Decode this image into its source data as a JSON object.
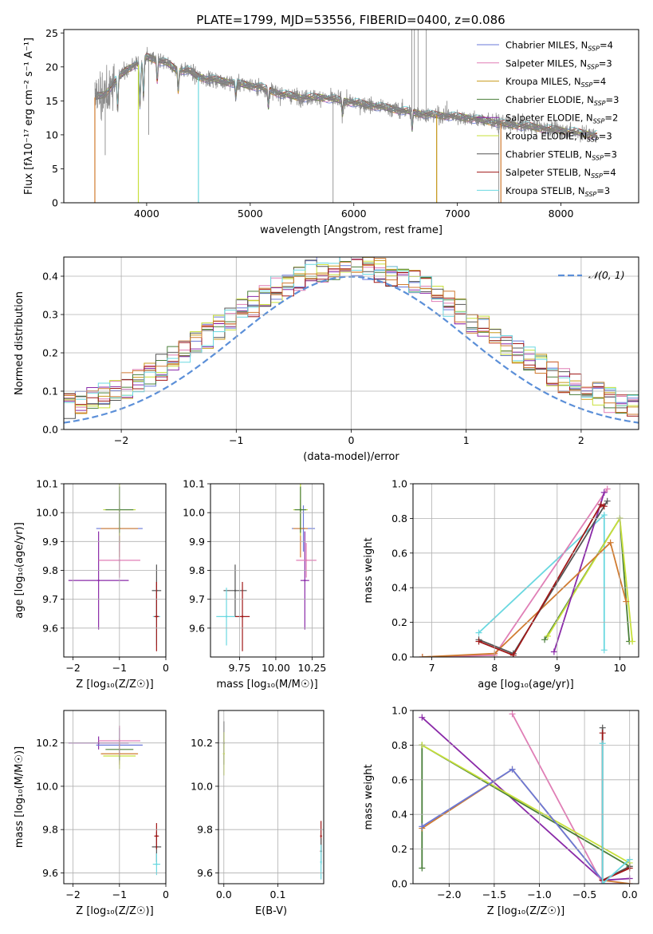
{
  "title": "PLATE=1799, MJD=53556, FIBERID=0400, z=0.086",
  "colors": {
    "chabrier_miles": "#6a78d8",
    "salpeter_miles": "#e07fb6",
    "kroupa_miles": "#c89a1a",
    "chabrier_elodie": "#4a7f3a",
    "salpeter_elodie": "#8a2aa8",
    "kroupa_elodie": "#c7e03a",
    "chabrier_stelib": "#555555",
    "salpeter_stelib": "#a01818",
    "kroupa_stelib": "#6ad8e0",
    "orange_fit": "#d07b30",
    "gauss": "#5b8fd8",
    "data": "#7f7f7f",
    "grid": "#b0b0b0"
  },
  "chart_data": [
    {
      "id": "spectrum",
      "type": "line",
      "xlabel": "wavelength [Angstrom, rest frame]",
      "ylabel": "Flux [fλ10⁻¹⁷ erg cm⁻² s⁻¹ A⁻¹]",
      "xlim": [
        3200,
        8750
      ],
      "ylim": [
        0,
        25.5
      ],
      "xticks": [
        4000,
        5000,
        6000,
        7000,
        8000
      ],
      "yticks": [
        0,
        5,
        10,
        15,
        20,
        25
      ],
      "grid": false,
      "legend_position": "top-right",
      "legend": [
        {
          "text": "Chabrier MILES, N",
          "sub": "SSP",
          "tail": "=4",
          "color_key": "chabrier_miles"
        },
        {
          "text": "Salpeter MILES, N",
          "sub": "SSP",
          "tail": "=3",
          "color_key": "salpeter_miles"
        },
        {
          "text": "Kroupa MILES, N",
          "sub": "SSP",
          "tail": "=4",
          "color_key": "kroupa_miles"
        },
        {
          "text": "Chabrier ELODIE, N",
          "sub": "SSP",
          "tail": "=3",
          "color_key": "chabrier_elodie"
        },
        {
          "text": "Salpeter ELODIE, N",
          "sub": "SSP",
          "tail": "=2",
          "color_key": "salpeter_elodie"
        },
        {
          "text": "Kroupa ELODIE, N",
          "sub": "SSP",
          "tail": "=3",
          "color_key": "kroupa_elodie"
        },
        {
          "text": "Chabrier STELIB, N",
          "sub": "SSP",
          "tail": "=3",
          "color_key": "chabrier_stelib"
        },
        {
          "text": "Salpeter STELIB, N",
          "sub": "SSP",
          "tail": "=4",
          "color_key": "salpeter_stelib"
        },
        {
          "text": "Kroupa STELIB, N",
          "sub": "SSP",
          "tail": "=3",
          "color_key": "kroupa_stelib"
        }
      ],
      "continuum": [
        [
          3500,
          15.5
        ],
        [
          3600,
          16.0
        ],
        [
          3700,
          18.0
        ],
        [
          3800,
          19.5
        ],
        [
          3900,
          20.5
        ],
        [
          3950,
          20.0
        ],
        [
          4000,
          21.5
        ],
        [
          4100,
          21.0
        ],
        [
          4200,
          20.5
        ],
        [
          4300,
          19.5
        ],
        [
          4400,
          19.5
        ],
        [
          4500,
          18.5
        ],
        [
          4700,
          18.0
        ],
        [
          4900,
          17.5
        ],
        [
          5100,
          17.0
        ],
        [
          5300,
          16.0
        ],
        [
          5500,
          15.5
        ],
        [
          5700,
          15.5
        ],
        [
          5900,
          15.0
        ],
        [
          6100,
          14.5
        ],
        [
          6300,
          14.0
        ],
        [
          6500,
          13.5
        ],
        [
          6700,
          13.0
        ],
        [
          6900,
          12.8
        ],
        [
          7100,
          12.5
        ],
        [
          7300,
          12.0
        ],
        [
          7500,
          11.5
        ],
        [
          7700,
          11.2
        ],
        [
          7900,
          10.8
        ],
        [
          8100,
          10.5
        ],
        [
          8300,
          10.0
        ]
      ],
      "absorption": [
        [
          3720,
          4.5
        ],
        [
          3935,
          6
        ],
        [
          3970,
          5
        ],
        [
          4102,
          3
        ],
        [
          4305,
          3
        ],
        [
          4861,
          2
        ],
        [
          5175,
          2.5
        ],
        [
          5890,
          2
        ],
        [
          6563,
          2.5
        ],
        [
          8500,
          1.5
        ],
        [
          8542,
          2
        ],
        [
          8662,
          1.5
        ]
      ],
      "data_spikes": [
        [
          3600,
          7
        ],
        [
          4020,
          10
        ],
        [
          5800,
          0
        ],
        [
          6560,
          25.5
        ],
        [
          6585,
          25.5
        ],
        [
          6620,
          25.5
        ],
        [
          6700,
          25.5
        ],
        [
          6800,
          0
        ],
        [
          6900,
          15
        ],
        [
          7400,
          0
        ]
      ],
      "model_dropouts": [
        [
          3500,
          0,
          "orange_fit"
        ],
        [
          3920,
          0,
          "kroupa_elodie"
        ],
        [
          4500,
          0,
          "kroupa_stelib"
        ],
        [
          6800,
          0,
          "kroupa_miles"
        ],
        [
          7420,
          0,
          "orange_fit"
        ]
      ]
    },
    {
      "id": "residuals",
      "type": "area",
      "xlabel": "(data-model)/error",
      "ylabel": "Normed distribution",
      "xlim": [
        -2.5,
        2.5
      ],
      "ylim": [
        0,
        0.45
      ],
      "xticks": [
        -2,
        -1,
        0,
        1,
        2
      ],
      "yticks": [
        0.0,
        0.1,
        0.2,
        0.3,
        0.4
      ],
      "grid": true,
      "legend_position": "top-right",
      "gauss_label": "𝒩(0, 1)",
      "bin_width": 0.1
    },
    {
      "id": "age_vs_Z",
      "type": "scatter",
      "xlabel": "Z [log₁₀(Z/Z☉)]",
      "ylabel": "age  [log₁₀(age/yr)]",
      "xlim": [
        -2.2,
        0.0
      ],
      "ylim": [
        9.5,
        10.1
      ],
      "xticks": [
        -2,
        -1,
        0
      ],
      "yticks": [
        9.6,
        9.7,
        9.8,
        9.9,
        10.0,
        10.1
      ],
      "grid": true,
      "points": [
        {
          "x": -1.45,
          "y": 9.765,
          "xerr": 0.65,
          "yerr": 0.17,
          "color_key": "salpeter_elodie"
        },
        {
          "x": -1.0,
          "y": 9.945,
          "xerr": 0.5,
          "yerr": 0.08,
          "color_key": "chabrier_miles"
        },
        {
          "x": -1.0,
          "y": 9.945,
          "xerr": 0.4,
          "yerr": 0.1,
          "color_key": "orange_fit"
        },
        {
          "x": -1.0,
          "y": 10.01,
          "xerr": 0.35,
          "yerr": 0.09,
          "color_key": "kroupa_elodie"
        },
        {
          "x": -1.0,
          "y": 10.01,
          "xerr": 0.3,
          "yerr": 0.08,
          "color_key": "chabrier_elodie"
        },
        {
          "x": -1.0,
          "y": 9.835,
          "xerr": 0.45,
          "yerr": 0.06,
          "color_key": "salpeter_miles"
        },
        {
          "x": -0.2,
          "y": 9.73,
          "xerr": 0.1,
          "yerr": 0.09,
          "color_key": "chabrier_stelib"
        },
        {
          "x": -0.2,
          "y": 9.64,
          "xerr": 0.08,
          "yerr": 0.1,
          "color_key": "kroupa_stelib"
        },
        {
          "x": -0.2,
          "y": 9.64,
          "xerr": 0.05,
          "yerr": 0.12,
          "color_key": "salpeter_stelib"
        }
      ]
    },
    {
      "id": "age_vs_mass",
      "type": "scatter",
      "xlabel": "mass [log₁₀(M/M☉)]",
      "ylabel": "",
      "xlim": [
        9.55,
        10.33
      ],
      "ylim": [
        9.5,
        10.1
      ],
      "xticks": [
        9.75,
        10.0,
        10.25
      ],
      "xticklabels": [
        "9.75",
        "10.00",
        "10.25"
      ],
      "yticks": [
        9.6,
        9.7,
        9.8,
        9.9,
        10.0,
        10.1
      ],
      "grid": true,
      "points": [
        {
          "x": 10.2,
          "y": 9.765,
          "xerr": 0.03,
          "yerr": 0.17,
          "color_key": "salpeter_elodie"
        },
        {
          "x": 10.19,
          "y": 9.945,
          "xerr": 0.08,
          "yerr": 0.08,
          "color_key": "chabrier_miles"
        },
        {
          "x": 10.17,
          "y": 9.945,
          "xerr": 0.05,
          "yerr": 0.1,
          "color_key": "orange_fit"
        },
        {
          "x": 10.17,
          "y": 10.01,
          "xerr": 0.05,
          "yerr": 0.09,
          "color_key": "kroupa_elodie"
        },
        {
          "x": 10.17,
          "y": 10.01,
          "xerr": 0.04,
          "yerr": 0.08,
          "color_key": "chabrier_elodie"
        },
        {
          "x": 10.21,
          "y": 9.835,
          "xerr": 0.07,
          "yerr": 0.06,
          "color_key": "salpeter_miles"
        },
        {
          "x": 9.72,
          "y": 9.73,
          "xerr": 0.08,
          "yerr": 0.09,
          "color_key": "chabrier_stelib"
        },
        {
          "x": 9.66,
          "y": 9.64,
          "xerr": 0.07,
          "yerr": 0.1,
          "color_key": "kroupa_stelib"
        },
        {
          "x": 9.77,
          "y": 9.64,
          "xerr": 0.05,
          "yerr": 0.12,
          "color_key": "salpeter_stelib"
        }
      ]
    },
    {
      "id": "weight_vs_age",
      "type": "line",
      "xlabel": "age  [log₁₀(age/yr)]",
      "ylabel": "mass weight",
      "xlim": [
        6.7,
        10.3
      ],
      "ylim": [
        0,
        1.0
      ],
      "xticks": [
        7,
        8,
        9,
        10
      ],
      "yticks": [
        0.0,
        0.2,
        0.4,
        0.6,
        0.8,
        1.0
      ],
      "grid": true,
      "series": [
        {
          "color_key": "kroupa_stelib",
          "points": [
            [
              7.75,
              0.14
            ],
            [
              9.75,
              0.82
            ],
            [
              9.75,
              0.04
            ]
          ]
        },
        {
          "color_key": "salpeter_miles",
          "points": [
            [
              6.85,
              0.0
            ],
            [
              8.0,
              0.01
            ],
            [
              9.8,
              0.97
            ]
          ]
        },
        {
          "color_key": "chabrier_elodie",
          "points": [
            [
              8.8,
              0.1
            ],
            [
              10.0,
              0.8
            ],
            [
              10.15,
              0.09
            ]
          ]
        },
        {
          "color_key": "kroupa_elodie",
          "points": [
            [
              8.85,
              0.12
            ],
            [
              10.0,
              0.8
            ],
            [
              10.2,
              0.09
            ]
          ]
        },
        {
          "color_key": "salpeter_elodie",
          "points": [
            [
              8.95,
              0.03
            ],
            [
              9.75,
              0.95
            ]
          ]
        },
        {
          "color_key": "orange_fit",
          "points": [
            [
              6.85,
              0.0
            ],
            [
              8.0,
              0.02
            ],
            [
              9.85,
              0.66
            ],
            [
              10.1,
              0.32
            ]
          ]
        },
        {
          "color_key": "chabrier_stelib",
          "points": [
            [
              7.75,
              0.1
            ],
            [
              8.3,
              0.02
            ],
            [
              9.8,
              0.9
            ]
          ]
        },
        {
          "color_key": "salpeter_stelib",
          "points": [
            [
              7.75,
              0.09
            ],
            [
              8.3,
              0.01
            ],
            [
              9.7,
              0.88
            ],
            [
              9.75,
              0.87
            ]
          ]
        }
      ]
    },
    {
      "id": "mass_vs_Z",
      "type": "scatter",
      "xlabel": "Z [log₁₀(Z/Z☉)]",
      "ylabel": "mass [log₁₀(M/M☉)]",
      "xlim": [
        -2.2,
        0.0
      ],
      "ylim": [
        9.55,
        10.35
      ],
      "xticks": [
        -2,
        -1,
        0
      ],
      "yticks": [
        9.6,
        9.8,
        10.0,
        10.2
      ],
      "grid": true,
      "points": [
        {
          "x": -1.45,
          "y": 10.2,
          "xerr": 0.65,
          "yerr": 0.03,
          "color_key": "salpeter_elodie"
        },
        {
          "x": -1.0,
          "y": 10.19,
          "xerr": 0.5,
          "yerr": 0.08,
          "color_key": "chabrier_miles"
        },
        {
          "x": -1.0,
          "y": 10.15,
          "xerr": 0.4,
          "yerr": 0.05,
          "color_key": "orange_fit"
        },
        {
          "x": -1.0,
          "y": 10.14,
          "xerr": 0.35,
          "yerr": 0.06,
          "color_key": "kroupa_elodie"
        },
        {
          "x": -1.0,
          "y": 10.17,
          "xerr": 0.3,
          "yerr": 0.05,
          "color_key": "chabrier_elodie"
        },
        {
          "x": -1.0,
          "y": 10.21,
          "xerr": 0.45,
          "yerr": 0.07,
          "color_key": "salpeter_miles"
        },
        {
          "x": -0.2,
          "y": 9.72,
          "xerr": 0.1,
          "yerr": 0.07,
          "color_key": "chabrier_stelib"
        },
        {
          "x": -0.2,
          "y": 9.64,
          "xerr": 0.08,
          "yerr": 0.05,
          "color_key": "kroupa_stelib"
        },
        {
          "x": -0.2,
          "y": 9.77,
          "xerr": 0.05,
          "yerr": 0.06,
          "color_key": "salpeter_stelib"
        }
      ]
    },
    {
      "id": "mass_vs_ebv",
      "type": "scatter",
      "xlabel": "E(B-V)",
      "ylabel": "",
      "xlim": [
        -0.01,
        0.185
      ],
      "ylim": [
        9.55,
        10.35
      ],
      "xticks": [
        0.0,
        0.1
      ],
      "xticklabels": [
        "0.0",
        "0.1"
      ],
      "yticks": [
        9.6,
        9.8,
        10.0,
        10.2
      ],
      "grid": true,
      "points": [
        {
          "x": 0.0,
          "y": 10.2,
          "xerr": 0.0,
          "yerr": 0.1,
          "color_key": "chabrier_stelib"
        },
        {
          "x": 0.0,
          "y": 10.15,
          "xerr": 0.0,
          "yerr": 0.1,
          "color_key": "kroupa_elodie"
        },
        {
          "x": 0.18,
          "y": 9.77,
          "xerr": 0.0,
          "yerr": 0.07,
          "color_key": "salpeter_stelib"
        },
        {
          "x": 0.18,
          "y": 9.7,
          "xerr": 0.0,
          "yerr": 0.06,
          "color_key": "chabrier_stelib"
        },
        {
          "x": 0.18,
          "y": 9.65,
          "xerr": 0.0,
          "yerr": 0.08,
          "color_key": "kroupa_stelib"
        }
      ]
    },
    {
      "id": "weight_vs_Z",
      "type": "line",
      "xlabel": "Z [log₁₀(Z/Z☉)]",
      "ylabel": "mass weight",
      "xlim": [
        -2.4,
        0.1
      ],
      "ylim": [
        0,
        1.0
      ],
      "xticks": [
        -2.0,
        -1.5,
        -1.0,
        -0.5,
        0.0
      ],
      "xticklabels": [
        "−2.0",
        "−1.5",
        "−1.0",
        "−0.5",
        "0.0"
      ],
      "yticks": [
        0.0,
        0.2,
        0.4,
        0.6,
        0.8,
        1.0
      ],
      "grid": true,
      "series": [
        {
          "color_key": "salpeter_elodie",
          "points": [
            [
              -2.3,
              0.96
            ],
            [
              -0.3,
              0.02
            ],
            [
              0.0,
              0.03
            ]
          ]
        },
        {
          "color_key": "salpeter_miles",
          "points": [
            [
              -1.3,
              0.98
            ],
            [
              -0.3,
              0.0
            ],
            [
              0.0,
              0.0
            ]
          ]
        },
        {
          "color_key": "chabrier_elodie",
          "points": [
            [
              -2.3,
              0.09
            ],
            [
              -2.3,
              0.8
            ],
            [
              0.0,
              0.1
            ]
          ]
        },
        {
          "color_key": "kroupa_elodie",
          "points": [
            [
              -2.3,
              0.8
            ],
            [
              0.0,
              0.12
            ]
          ]
        },
        {
          "color_key": "orange_fit",
          "points": [
            [
              -2.3,
              0.32
            ],
            [
              -1.3,
              0.66
            ],
            [
              -0.3,
              0.02
            ],
            [
              0.0,
              0.0
            ]
          ]
        },
        {
          "color_key": "chabrier_miles",
          "points": [
            [
              -2.3,
              0.33
            ],
            [
              -1.3,
              0.66
            ],
            [
              -0.3,
              0.02
            ]
          ]
        },
        {
          "color_key": "chabrier_stelib",
          "points": [
            [
              -0.3,
              0.9
            ],
            [
              -0.3,
              0.02
            ],
            [
              0.0,
              0.1
            ]
          ]
        },
        {
          "color_key": "salpeter_stelib",
          "points": [
            [
              -0.3,
              0.87
            ],
            [
              -0.3,
              0.02
            ],
            [
              0.0,
              0.09
            ]
          ]
        },
        {
          "color_key": "kroupa_stelib",
          "points": [
            [
              -0.3,
              0.81
            ],
            [
              -0.3,
              0.0
            ],
            [
              0.0,
              0.14
            ]
          ]
        }
      ]
    }
  ]
}
